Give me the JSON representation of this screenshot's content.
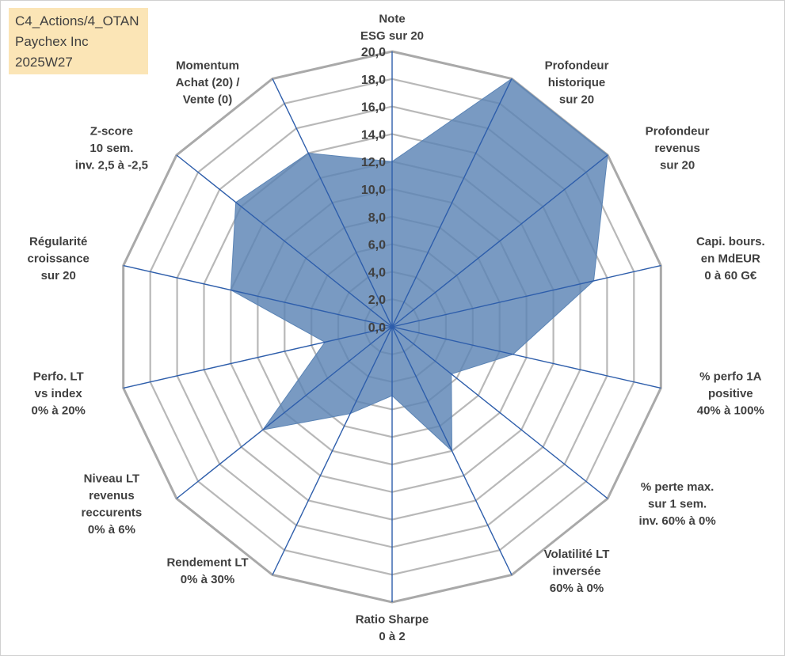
{
  "info": {
    "line1": "C4_Actions/4_OTAN",
    "line2": "Paychex Inc",
    "line3": "2025W27"
  },
  "chart_data": {
    "type": "radar",
    "title": "",
    "rmin": 0,
    "rmax": 20,
    "ticks": [
      "0,0",
      "2,0",
      "4,0",
      "6,0",
      "8,0",
      "10,0",
      "12,0",
      "14,0",
      "16,0",
      "18,0",
      "20,0"
    ],
    "axes": [
      {
        "label": [
          "Note",
          "ESG sur 20"
        ],
        "value": 12.0
      },
      {
        "label": [
          "Profondeur",
          "historique",
          "sur 20"
        ],
        "value": 20.0
      },
      {
        "label": [
          "Profondeur",
          "revenus",
          "sur 20"
        ],
        "value": 20.0
      },
      {
        "label": [
          "Capi. bours.",
          "en MdEUR",
          "0 à 60 G€"
        ],
        "value": 15.0
      },
      {
        "label": [
          "% perfo 1A",
          "positive",
          "40% à 100%"
        ],
        "value": 9.0
      },
      {
        "label": [
          "% perte max.",
          "sur 1 sem.",
          "inv. 60% à 0%"
        ],
        "value": 5.5
      },
      {
        "label": [
          "Volatilité LT",
          "inversée",
          "60% à 0%"
        ],
        "value": 10.0
      },
      {
        "label": [
          "Ratio Sharpe",
          "0 à 2"
        ],
        "value": 5.0
      },
      {
        "label": [
          "Rendement LT",
          "0% à 30%"
        ],
        "value": 7.0
      },
      {
        "label": [
          "Niveau LT",
          "revenus",
          "reccurents",
          "0% à 6%"
        ],
        "value": 12.0
      },
      {
        "label": [
          "Perfo. LT",
          "vs index",
          "0% à 20%"
        ],
        "value": 5.0
      },
      {
        "label": [
          "Régularité",
          "croissance",
          "sur 20"
        ],
        "value": 12.0
      },
      {
        "label": [
          "Z-score",
          "10 sem.",
          "inv. 2,5 à -2,5"
        ],
        "value": 14.5
      },
      {
        "label": [
          "Momentum",
          "Achat (20) /",
          "Vente (0)"
        ],
        "value": 14.0
      }
    ],
    "grid": true,
    "legend": "none",
    "colors": {
      "fill": "#5b84b5",
      "spoke": "#2e5eab",
      "grid": "#b8b8b8",
      "outer": "#a9a9a9"
    }
  }
}
